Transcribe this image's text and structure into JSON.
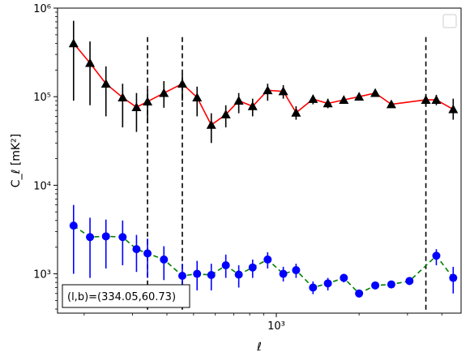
{
  "chart_data": {
    "type": "scatter",
    "title": "",
    "xlabel": "ℓ",
    "ylabel": "C_ℓ  [mK²]",
    "x_scale": "log",
    "y_scale": "log",
    "xlim": [
      160,
      4700
    ],
    "ylim": [
      360,
      1000000
    ],
    "grid": false,
    "legend": "top-right (empty)",
    "x_ticks": [
      {
        "value": 1000,
        "label": "10³"
      }
    ],
    "y_ticks": [
      {
        "value": 1000,
        "label": "10³"
      },
      {
        "value": 10000,
        "label": "10⁴"
      },
      {
        "value": 100000,
        "label": "10⁵"
      },
      {
        "value": 1000000,
        "label": "10⁶"
      }
    ],
    "annotation": "(l,b)=(334.05,60.73)",
    "vlines": [
      340,
      455,
      3500
    ],
    "series": [
      {
        "marker": "triangle",
        "marker_color": "#000000",
        "line_color": "#ff0000",
        "line_style": "solid",
        "points": [
          {
            "x": 183,
            "y": 400000,
            "lo": 90000,
            "hi": 720000
          },
          {
            "x": 210,
            "y": 240000,
            "lo": 80000,
            "hi": 420000
          },
          {
            "x": 240,
            "y": 140000,
            "lo": 60000,
            "hi": 220000
          },
          {
            "x": 276,
            "y": 98000,
            "lo": 45000,
            "hi": 140000
          },
          {
            "x": 310,
            "y": 76000,
            "lo": 40000,
            "hi": 110000
          },
          {
            "x": 340,
            "y": 88000,
            "lo": 50000,
            "hi": 120000
          },
          {
            "x": 390,
            "y": 110000,
            "lo": 75000,
            "hi": 150000
          },
          {
            "x": 455,
            "y": 140000,
            "lo": 90000,
            "hi": 180000
          },
          {
            "x": 515,
            "y": 98000,
            "lo": 60000,
            "hi": 130000
          },
          {
            "x": 580,
            "y": 48000,
            "lo": 30000,
            "hi": 65000
          },
          {
            "x": 655,
            "y": 63000,
            "lo": 45000,
            "hi": 80000
          },
          {
            "x": 730,
            "y": 90000,
            "lo": 65000,
            "hi": 110000
          },
          {
            "x": 820,
            "y": 78000,
            "lo": 60000,
            "hi": 95000
          },
          {
            "x": 930,
            "y": 118000,
            "lo": 90000,
            "hi": 140000
          },
          {
            "x": 1060,
            "y": 115000,
            "lo": 95000,
            "hi": 135000
          },
          {
            "x": 1180,
            "y": 66000,
            "lo": 55000,
            "hi": 78000
          },
          {
            "x": 1360,
            "y": 94000,
            "lo": 82000,
            "hi": 105000
          },
          {
            "x": 1540,
            "y": 84000,
            "lo": 74000,
            "hi": 95000
          },
          {
            "x": 1760,
            "y": 92000,
            "lo": 85000,
            "hi": 100000
          },
          {
            "x": 2000,
            "y": 100000,
            "lo": 92000,
            "hi": 108000
          },
          {
            "x": 2290,
            "y": 110000,
            "lo": 100000,
            "hi": 120000
          },
          {
            "x": 2620,
            "y": 82000,
            "lo": 75000,
            "hi": 90000
          },
          {
            "x": 3500,
            "y": 92000,
            "lo": 78000,
            "hi": 105000
          },
          {
            "x": 3820,
            "y": 92000,
            "lo": 80000,
            "hi": 105000
          },
          {
            "x": 4400,
            "y": 72000,
            "lo": 55000,
            "hi": 95000
          }
        ]
      },
      {
        "marker": "circle",
        "marker_color": "#0000ff",
        "line_color": "#008000",
        "line_style": "dashed",
        "points": [
          {
            "x": 183,
            "y": 3500,
            "lo": 1000,
            "hi": 6000
          },
          {
            "x": 210,
            "y": 2600,
            "lo": 900,
            "hi": 4300
          },
          {
            "x": 240,
            "y": 2650,
            "lo": 1150,
            "hi": 4100
          },
          {
            "x": 276,
            "y": 2600,
            "lo": 1250,
            "hi": 4000
          },
          {
            "x": 310,
            "y": 1900,
            "lo": 1050,
            "hi": 2750
          },
          {
            "x": 340,
            "y": 1700,
            "lo": 900,
            "hi": 2500
          },
          {
            "x": 390,
            "y": 1450,
            "lo": 850,
            "hi": 2050
          },
          {
            "x": 455,
            "y": 950,
            "lo": 600,
            "hi": 1300
          },
          {
            "x": 515,
            "y": 1000,
            "lo": 650,
            "hi": 1400
          },
          {
            "x": 580,
            "y": 970,
            "lo": 650,
            "hi": 1300
          },
          {
            "x": 655,
            "y": 1250,
            "lo": 900,
            "hi": 1650
          },
          {
            "x": 730,
            "y": 980,
            "lo": 700,
            "hi": 1250
          },
          {
            "x": 820,
            "y": 1180,
            "lo": 900,
            "hi": 1450
          },
          {
            "x": 930,
            "y": 1450,
            "lo": 1150,
            "hi": 1750
          },
          {
            "x": 1060,
            "y": 1000,
            "lo": 820,
            "hi": 1200
          },
          {
            "x": 1180,
            "y": 1100,
            "lo": 900,
            "hi": 1300
          },
          {
            "x": 1360,
            "y": 700,
            "lo": 590,
            "hi": 820
          },
          {
            "x": 1540,
            "y": 780,
            "lo": 650,
            "hi": 900
          },
          {
            "x": 1760,
            "y": 900,
            "lo": 800,
            "hi": 1000
          },
          {
            "x": 2000,
            "y": 600,
            "lo": 540,
            "hi": 660
          },
          {
            "x": 2290,
            "y": 740,
            "lo": 680,
            "hi": 800
          },
          {
            "x": 2620,
            "y": 760,
            "lo": 690,
            "hi": 830
          },
          {
            "x": 3050,
            "y": 830,
            "lo": 750,
            "hi": 910
          },
          {
            "x": 3820,
            "y": 1600,
            "lo": 1250,
            "hi": 1900
          },
          {
            "x": 4400,
            "y": 900,
            "lo": 600,
            "hi": 1200
          }
        ]
      }
    ]
  },
  "colors": {
    "vline": "#000000",
    "axes": "#000000",
    "legend_border": "#cccccc"
  }
}
